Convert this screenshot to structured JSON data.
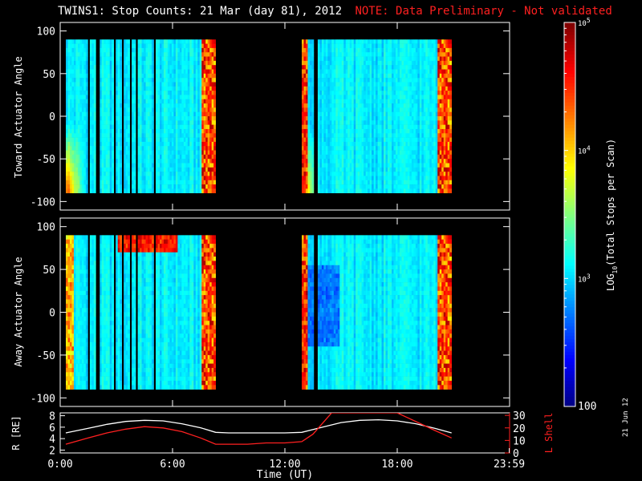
{
  "title": "TWINS1: Stop Counts: 21 Mar (day  81), 2012",
  "note": "NOTE: Data Preliminary - Not validated",
  "colors": {
    "note": "#ff2020",
    "axes": "#ffffff",
    "lshell": "#ff2020",
    "rdist": "#ffffff",
    "background": "#000000"
  },
  "date_stamp": "21 Jun 12",
  "chart_data": [
    {
      "type": "heatmap",
      "ylabel": "Toward Actuator Angle",
      "ylim": [
        -110,
        110
      ],
      "yticks": [
        "100",
        "50",
        "0",
        "-50",
        "-100"
      ],
      "xlim": [
        0,
        24
      ],
      "data_segments_hours": [
        [
          0.3,
          8.3
        ],
        [
          12.9,
          20.9
        ]
      ],
      "gaps_hours": [
        [
          1.5,
          1.6
        ],
        [
          1.9,
          2.1
        ],
        [
          2.9,
          3.0
        ],
        [
          3.3,
          3.4
        ],
        [
          3.7,
          3.85
        ],
        [
          4.0,
          4.15
        ],
        [
          4.95,
          5.15
        ],
        [
          13.5,
          13.7
        ]
      ]
    },
    {
      "type": "heatmap",
      "ylabel": "Away Actuator Angle",
      "ylim": [
        -110,
        110
      ],
      "yticks": [
        "100",
        "50",
        "0",
        "-50",
        "-100"
      ],
      "xlim": [
        0,
        24
      ],
      "data_segments_hours": [
        [
          0.3,
          8.3
        ],
        [
          12.9,
          20.9
        ]
      ],
      "gaps_hours": [
        [
          1.5,
          1.6
        ],
        [
          1.9,
          2.1
        ],
        [
          2.9,
          3.0
        ],
        [
          3.3,
          3.4
        ],
        [
          3.7,
          3.85
        ],
        [
          4.0,
          4.15
        ],
        [
          4.95,
          5.15
        ],
        [
          13.5,
          13.7
        ]
      ]
    },
    {
      "type": "line",
      "xlabel": "Time (UT)",
      "xticks": [
        "0:00",
        "6:00",
        "12:00",
        "18:00",
        "23:59"
      ],
      "ylabel": "R [RE]",
      "ylabel_right": "L Shell",
      "yticks_left": [
        "8",
        "6",
        "4",
        "2"
      ],
      "ylim_left": [
        1.5,
        8.5
      ],
      "yticks_right": [
        "30",
        "20",
        "10",
        "0"
      ],
      "ylim_right": [
        0,
        32
      ],
      "series": [
        {
          "name": "R",
          "x": [
            0.3,
            1.5,
            2.5,
            3.5,
            4.5,
            5.5,
            6.5,
            7.5,
            8.3,
            9,
            10,
            11,
            12,
            12.9,
            14,
            15,
            16,
            17,
            18,
            19,
            20,
            20.9
          ],
          "values": [
            5.0,
            5.8,
            6.5,
            7.0,
            7.2,
            7.1,
            6.6,
            5.9,
            5.1,
            5.0,
            5.0,
            5.0,
            5.0,
            5.1,
            6.0,
            6.8,
            7.2,
            7.3,
            7.1,
            6.6,
            5.8,
            5.0
          ]
        },
        {
          "name": "L Shell",
          "x": [
            0.3,
            1.5,
            2.5,
            3.5,
            4.5,
            5.5,
            6.5,
            7.5,
            8.3,
            9,
            10,
            11,
            12,
            12.9,
            13.5,
            14.5,
            18.0,
            19,
            20,
            20.9
          ],
          "values": [
            7,
            12,
            16,
            19,
            21,
            20,
            17,
            12,
            7,
            7,
            7,
            8,
            8,
            9,
            15,
            32,
            32,
            25,
            18,
            12
          ]
        }
      ]
    }
  ],
  "colorbar": {
    "label": "LOG10(Total Stops per Scan)",
    "label_main": "LOG",
    "label_sub": "10",
    "label_rest": "(Total Stops per Scan)",
    "ticks": [
      "10^5",
      "10^4",
      "10^3",
      "100"
    ],
    "tick_base": "10",
    "tick_exps": [
      "5",
      "4",
      "3"
    ],
    "tick_last": "100",
    "range_log": [
      2,
      5
    ]
  }
}
